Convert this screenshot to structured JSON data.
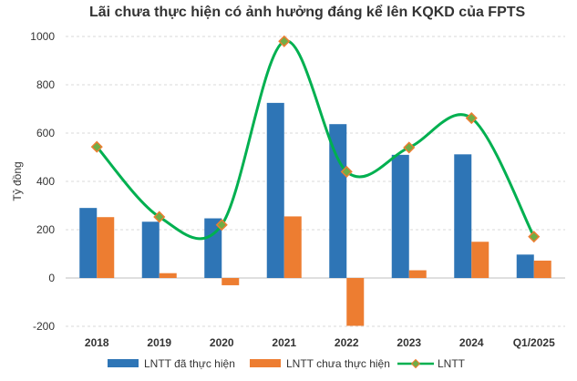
{
  "chart_data": {
    "type": "bar",
    "title": "Lãi chưa thực hiện có ảnh hưởng đáng kể lên KQKD của FPTS",
    "ylabel": "Tỷ đồng",
    "xlabel": "",
    "ylim": [
      -200,
      1000
    ],
    "yticks": [
      -200,
      0,
      200,
      400,
      600,
      800,
      1000
    ],
    "grid": true,
    "legend_position": "bottom",
    "categories": [
      "2018",
      "2019",
      "2020",
      "2021",
      "2022",
      "2023",
      "2024",
      "Q1/2025"
    ],
    "series": [
      {
        "name": "LNTT đã thực hiện",
        "type": "bar",
        "color": "#2E75B6",
        "values": [
          290,
          233,
          247,
          725,
          637,
          510,
          512,
          97
        ]
      },
      {
        "name": "LNTT chưa thực hiện",
        "type": "bar",
        "color": "#ED7D31",
        "values": [
          252,
          20,
          -30,
          255,
          -198,
          32,
          150,
          72
        ]
      },
      {
        "name": "LNTT",
        "type": "line",
        "color": "#00B050",
        "marker_color": "#70AD47",
        "values": [
          543,
          253,
          220,
          980,
          440,
          540,
          662,
          171
        ]
      }
    ]
  }
}
